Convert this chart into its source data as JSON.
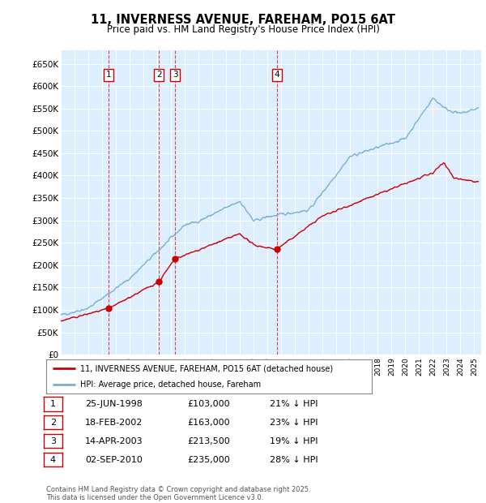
{
  "title": "11, INVERNESS AVENUE, FAREHAM, PO15 6AT",
  "subtitle": "Price paid vs. HM Land Registry's House Price Index (HPI)",
  "ylim": [
    0,
    680000
  ],
  "xlim_start": 1995.0,
  "xlim_end": 2025.5,
  "background_color": "#ddeeff",
  "grid_color": "#ffffff",
  "transactions": [
    {
      "num": 1,
      "date_label": "25-JUN-1998",
      "year": 1998.49,
      "price": 103000,
      "pct": "21%"
    },
    {
      "num": 2,
      "date_label": "18-FEB-2002",
      "year": 2002.12,
      "price": 163000,
      "pct": "23%"
    },
    {
      "num": 3,
      "date_label": "14-APR-2003",
      "year": 2003.29,
      "price": 213500,
      "pct": "19%"
    },
    {
      "num": 4,
      "date_label": "02-SEP-2010",
      "year": 2010.67,
      "price": 235000,
      "pct": "28%"
    }
  ],
  "legend_line1": "11, INVERNESS AVENUE, FAREHAM, PO15 6AT (detached house)",
  "legend_line2": "HPI: Average price, detached house, Fareham",
  "table_rows": [
    {
      "num": "1",
      "date": "25-JUN-1998",
      "price": "£103,000",
      "pct": "21% ↓ HPI"
    },
    {
      "num": "2",
      "date": "18-FEB-2002",
      "price": "£163,000",
      "pct": "23% ↓ HPI"
    },
    {
      "num": "3",
      "date": "14-APR-2003",
      "price": "£213,500",
      "pct": "19% ↓ HPI"
    },
    {
      "num": "4",
      "date": "02-SEP-2010",
      "price": "£235,000",
      "pct": "28% ↓ HPI"
    }
  ],
  "footer": "Contains HM Land Registry data © Crown copyright and database right 2025.\nThis data is licensed under the Open Government Licence v3.0.",
  "red_color": "#cc0000",
  "blue_color": "#7ab0d4",
  "dot_color": "#cc0000"
}
